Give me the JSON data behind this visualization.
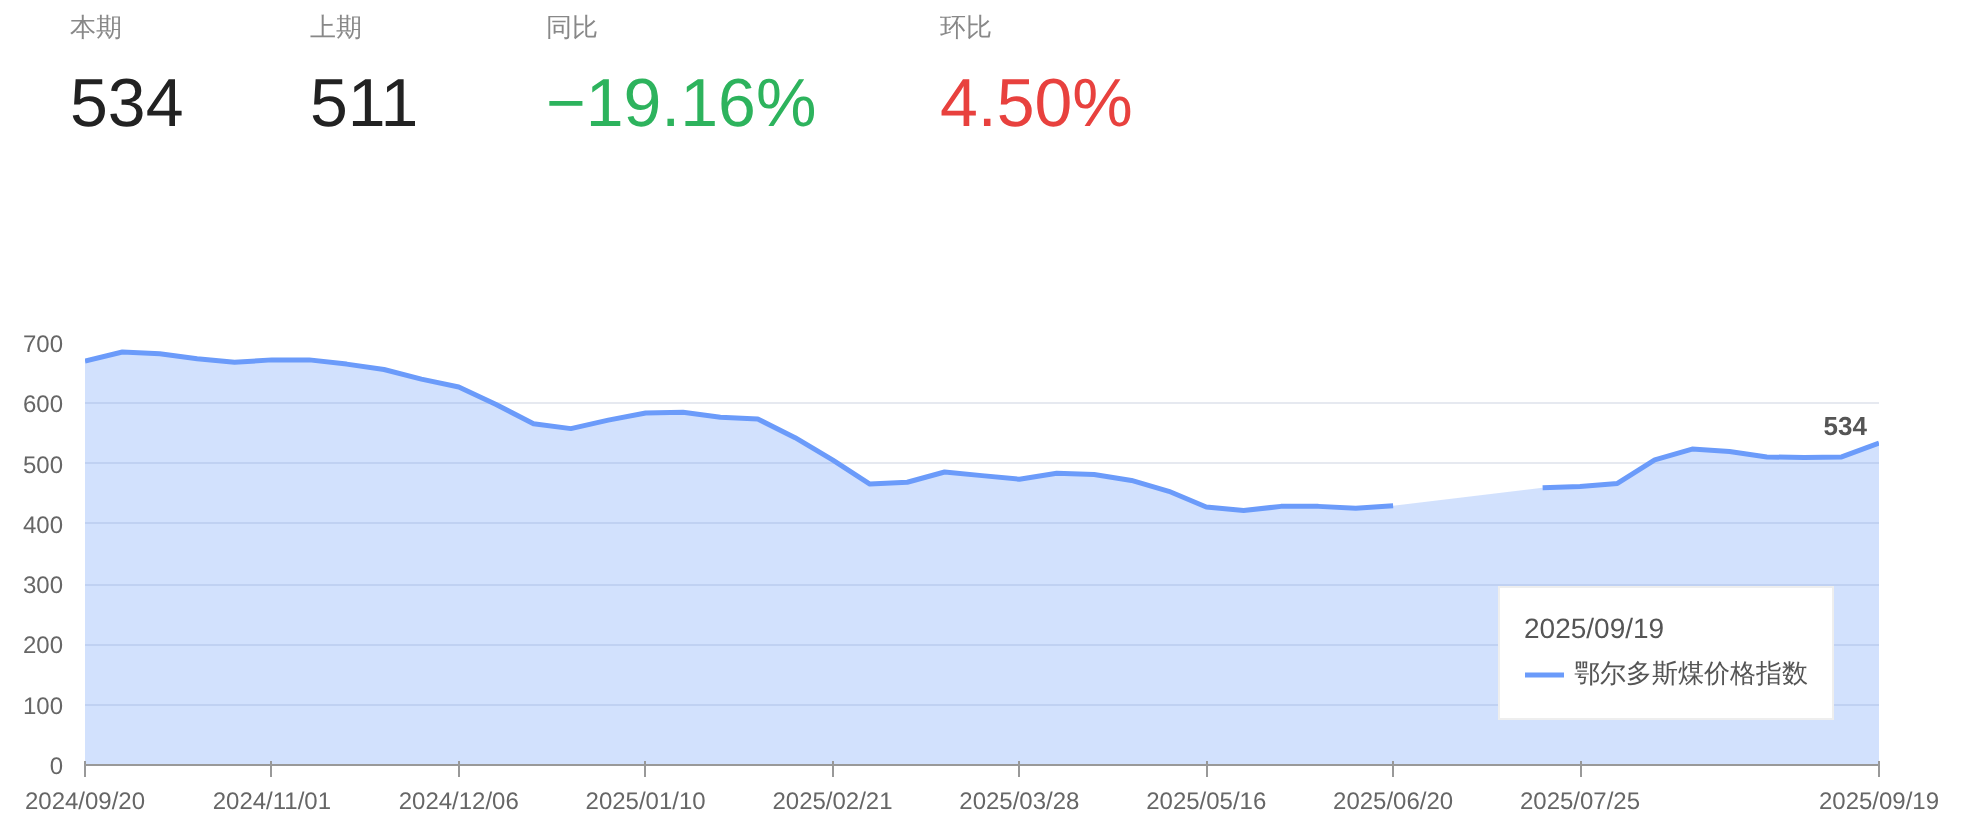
{
  "chart_data": {
    "type": "area",
    "categories": [
      "2024/09/20",
      null,
      null,
      null,
      null,
      "2024/11/01",
      null,
      null,
      null,
      null,
      "2024/12/06",
      null,
      null,
      null,
      null,
      "2025/01/10",
      null,
      null,
      null,
      null,
      "2025/02/21",
      null,
      null,
      null,
      null,
      "2025/03/28",
      null,
      null,
      null,
      null,
      "2025/05/16",
      null,
      null,
      null,
      null,
      "2025/06/20",
      null,
      null,
      null,
      null,
      "2025/07/25",
      null,
      null,
      null,
      null,
      null,
      null,
      null,
      "2025/09/19"
    ],
    "series": [
      {
        "name": "鄂尔多斯煤价格指数",
        "color": "#6b9bfa",
        "values": [
          670,
          685,
          682,
          674,
          668,
          672,
          672,
          665,
          656,
          640,
          627,
          598,
          566,
          558,
          572,
          584,
          585,
          577,
          574,
          543,
          506,
          466,
          469,
          486,
          480,
          474,
          484,
          482,
          472,
          454,
          428,
          422,
          429,
          429,
          426,
          430,
          null,
          null,
          null,
          460,
          462,
          467,
          506,
          524,
          520,
          511,
          510,
          511,
          534
        ],
        "value_labels": [
          null,
          null,
          null,
          null,
          null,
          null,
          null,
          null,
          null,
          null,
          null,
          null,
          null,
          null,
          null,
          null,
          null,
          null,
          null,
          null,
          null,
          null,
          null,
          null,
          null,
          null,
          null,
          null,
          null,
          null,
          null,
          null,
          null,
          null,
          null,
          null,
          null,
          null,
          null,
          null,
          null,
          null,
          null,
          null,
          null,
          null,
          null,
          null,
          "534"
        ]
      }
    ],
    "ylim": [
      0,
      700
    ],
    "yticks": [
      0,
      100,
      200,
      300,
      400,
      500,
      600,
      700
    ],
    "grid": "y",
    "legend": "bottom right",
    "annotations": [
      "本期",
      "534",
      "上期",
      "511",
      "同比",
      "−19.16%",
      "环比",
      "4.50%",
      "2025/09/19"
    ]
  }
}
